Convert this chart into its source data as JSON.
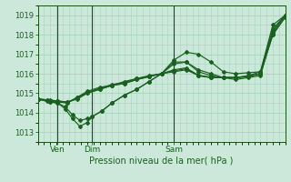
{
  "xlabel": "Pression niveau de la mer( hPa )",
  "bg_color": "#cce8da",
  "grid_color": "#a8d4bc",
  "line_color": "#1a6020",
  "dark_line_color": "#1a5018",
  "ylim": [
    1012.5,
    1019.5
  ],
  "yticks": [
    1013,
    1014,
    1015,
    1016,
    1017,
    1018,
    1019
  ],
  "xlim": [
    0,
    1.0
  ],
  "xtick_labels": [
    "Ven",
    "Dim",
    "Sam"
  ],
  "xtick_positions": [
    0.08,
    0.22,
    0.55
  ],
  "vline_positions": [
    0.08,
    0.22,
    0.55
  ],
  "lines": [
    {
      "x": [
        0.0,
        0.05,
        0.08,
        0.12,
        0.16,
        0.2,
        0.25,
        0.3,
        0.35,
        0.4,
        0.45,
        0.5,
        0.55,
        0.6,
        0.65,
        0.7,
        0.75,
        0.8,
        0.85,
        0.9,
        0.95,
        1.0
      ],
      "y": [
        1014.7,
        1014.65,
        1014.6,
        1014.5,
        1014.8,
        1015.0,
        1015.2,
        1015.4,
        1015.6,
        1015.75,
        1015.9,
        1016.0,
        1016.7,
        1017.1,
        1017.0,
        1016.6,
        1016.1,
        1016.0,
        1016.05,
        1016.1,
        1018.5,
        1019.0
      ]
    },
    {
      "x": [
        0.0,
        0.05,
        0.08,
        0.11,
        0.14,
        0.17,
        0.2,
        0.22,
        0.26,
        0.3,
        0.35,
        0.4,
        0.45,
        0.5,
        0.55,
        0.6,
        0.65,
        0.7,
        0.75,
        0.8,
        0.85,
        0.9,
        0.95,
        1.0
      ],
      "y": [
        1014.7,
        1014.55,
        1014.5,
        1014.3,
        1013.9,
        1013.6,
        1013.7,
        1013.8,
        1014.1,
        1014.5,
        1014.9,
        1015.2,
        1015.6,
        1016.0,
        1016.5,
        1016.6,
        1016.2,
        1016.0,
        1015.8,
        1015.8,
        1015.9,
        1016.1,
        1018.3,
        1019.0
      ]
    },
    {
      "x": [
        0.0,
        0.05,
        0.08,
        0.11,
        0.14,
        0.17,
        0.2,
        0.22,
        0.26,
        0.3,
        0.35,
        0.4,
        0.45,
        0.5,
        0.55,
        0.6,
        0.65,
        0.7,
        0.75,
        0.8,
        0.85,
        0.9,
        0.95,
        1.0
      ],
      "y": [
        1014.7,
        1014.55,
        1014.5,
        1014.2,
        1013.7,
        1013.3,
        1013.5,
        1013.8,
        1014.1,
        1014.5,
        1014.9,
        1015.2,
        1015.6,
        1016.0,
        1016.6,
        1016.6,
        1016.1,
        1015.9,
        1015.8,
        1015.7,
        1015.8,
        1015.9,
        1018.1,
        1019.0
      ]
    },
    {
      "x": [
        0.0,
        0.04,
        0.08,
        0.12,
        0.16,
        0.2,
        0.25,
        0.3,
        0.35,
        0.4,
        0.45,
        0.5,
        0.55,
        0.6,
        0.65,
        0.7,
        0.75,
        0.8,
        0.85,
        0.9,
        0.95,
        1.0
      ],
      "y": [
        1014.7,
        1014.6,
        1014.55,
        1014.5,
        1014.8,
        1015.1,
        1015.3,
        1015.4,
        1015.5,
        1015.7,
        1015.85,
        1016.0,
        1016.2,
        1016.3,
        1015.9,
        1015.8,
        1015.8,
        1015.8,
        1015.85,
        1016.0,
        1018.0,
        1018.9
      ]
    },
    {
      "x": [
        0.0,
        0.04,
        0.08,
        0.12,
        0.16,
        0.2,
        0.25,
        0.3,
        0.35,
        0.4,
        0.45,
        0.5,
        0.55,
        0.6,
        0.65,
        0.7,
        0.75,
        0.8,
        0.85,
        0.9,
        0.95,
        1.0
      ],
      "y": [
        1014.7,
        1014.65,
        1014.6,
        1014.55,
        1014.7,
        1015.0,
        1015.2,
        1015.4,
        1015.5,
        1015.7,
        1015.85,
        1016.0,
        1016.1,
        1016.2,
        1015.9,
        1015.8,
        1015.8,
        1015.8,
        1015.85,
        1016.0,
        1018.0,
        1018.9
      ]
    },
    {
      "x": [
        0.0,
        0.04,
        0.08,
        0.12,
        0.16,
        0.2,
        0.25,
        0.3,
        0.35,
        0.4,
        0.45,
        0.5,
        0.55,
        0.6,
        0.65,
        0.7,
        0.75,
        0.8,
        0.85,
        0.9,
        0.95,
        1.0
      ],
      "y": [
        1014.7,
        1014.65,
        1014.6,
        1014.55,
        1014.75,
        1015.05,
        1015.25,
        1015.45,
        1015.55,
        1015.75,
        1015.88,
        1016.0,
        1016.15,
        1016.25,
        1015.92,
        1015.82,
        1015.82,
        1015.8,
        1015.88,
        1016.0,
        1018.2,
        1019.0
      ]
    }
  ]
}
